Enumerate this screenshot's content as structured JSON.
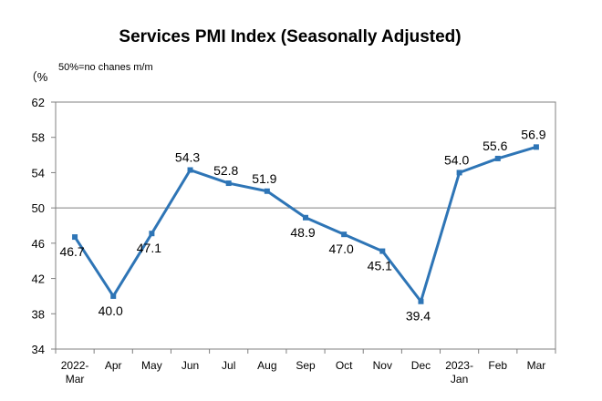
{
  "chart_data": {
    "type": "line",
    "title": "Services PMI Index (Seasonally Adjusted)",
    "note": "50%=no chanes m/m",
    "yunit": "（%",
    "ylim": [
      34,
      62
    ],
    "yticks": [
      "62",
      "58",
      "54",
      "50",
      "46",
      "42",
      "38",
      "34"
    ],
    "yticks_values": [
      62,
      58,
      54,
      50,
      46,
      42,
      38,
      34
    ],
    "reference_line": 50,
    "grid": false,
    "categories": [
      [
        "2022-",
        "Mar"
      ],
      [
        "Apr"
      ],
      [
        "May"
      ],
      [
        "Jun"
      ],
      [
        "Jul"
      ],
      [
        "Aug"
      ],
      [
        "Sep"
      ],
      [
        "Oct"
      ],
      [
        "Nov"
      ],
      [
        "Dec"
      ],
      [
        "2023-",
        "Jan"
      ],
      [
        "Feb"
      ],
      [
        "Mar"
      ]
    ],
    "series": [
      {
        "values": [
          46.7,
          40.0,
          47.1,
          54.3,
          52.8,
          51.9,
          48.9,
          47.0,
          45.1,
          39.4,
          54.0,
          55.6,
          56.9
        ],
        "labels": [
          "46.7",
          "40.0",
          "47.1",
          "54.3",
          "52.8",
          "51.9",
          "48.9",
          "47.0",
          "45.1",
          "39.4",
          "54.0",
          "55.6",
          "56.9"
        ],
        "label_position": [
          "below",
          "below",
          "below",
          "above",
          "above",
          "above",
          "below",
          "below",
          "below",
          "below",
          "above",
          "above",
          "above"
        ],
        "color": "#2e75b6"
      }
    ]
  }
}
